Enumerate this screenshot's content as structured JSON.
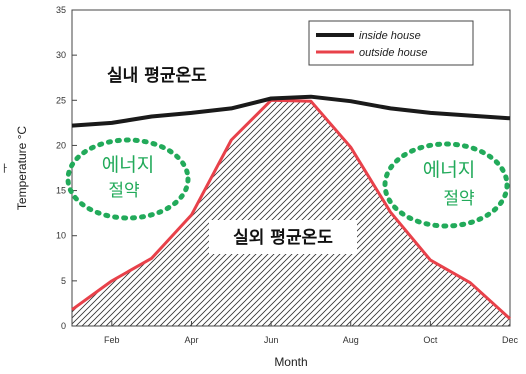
{
  "chart_data": {
    "type": "line",
    "xlabel": "Month",
    "ylabel": "Temperature °C",
    "xlim": [
      1,
      12
    ],
    "ylim": [
      0,
      35
    ],
    "x_ticks": [
      {
        "month": 2,
        "label": "Feb"
      },
      {
        "month": 4,
        "label": "Apr"
      },
      {
        "month": 6,
        "label": "Jun"
      },
      {
        "month": 8,
        "label": "Aug"
      },
      {
        "month": 10,
        "label": "Oct"
      },
      {
        "month": 12,
        "label": "Dec"
      }
    ],
    "y_ticks": [
      0,
      5,
      10,
      15,
      20,
      25,
      30,
      35
    ],
    "series": [
      {
        "name": "inside house",
        "color": "#1a1a1a",
        "x": [
          1,
          2,
          3,
          4,
          5,
          6,
          7,
          8,
          9,
          10,
          11,
          12
        ],
        "y": [
          22.2,
          22.5,
          23.2,
          23.6,
          24.1,
          25.2,
          25.4,
          24.9,
          24.1,
          23.6,
          23.3,
          23.0
        ]
      },
      {
        "name": "outside house",
        "color": "#e8414a",
        "x": [
          1,
          2,
          3,
          4,
          5,
          6,
          7,
          8,
          9,
          10,
          11,
          12
        ],
        "y": [
          1.8,
          5.0,
          7.5,
          12.3,
          20.6,
          25.0,
          24.9,
          19.8,
          12.6,
          7.3,
          4.8,
          0.8
        ]
      }
    ],
    "legend_position": "top-right",
    "annotations": {
      "inside_avg": "실내 평균온도",
      "outside_avg": "실외 평균온도",
      "energy_line1": "에너지",
      "energy_line2": "절약"
    }
  },
  "colors": {
    "energy_green": "#22aa5a",
    "outside_red": "#e8414a",
    "inside_black": "#1a1a1a"
  },
  "side_label": "ㅏ"
}
